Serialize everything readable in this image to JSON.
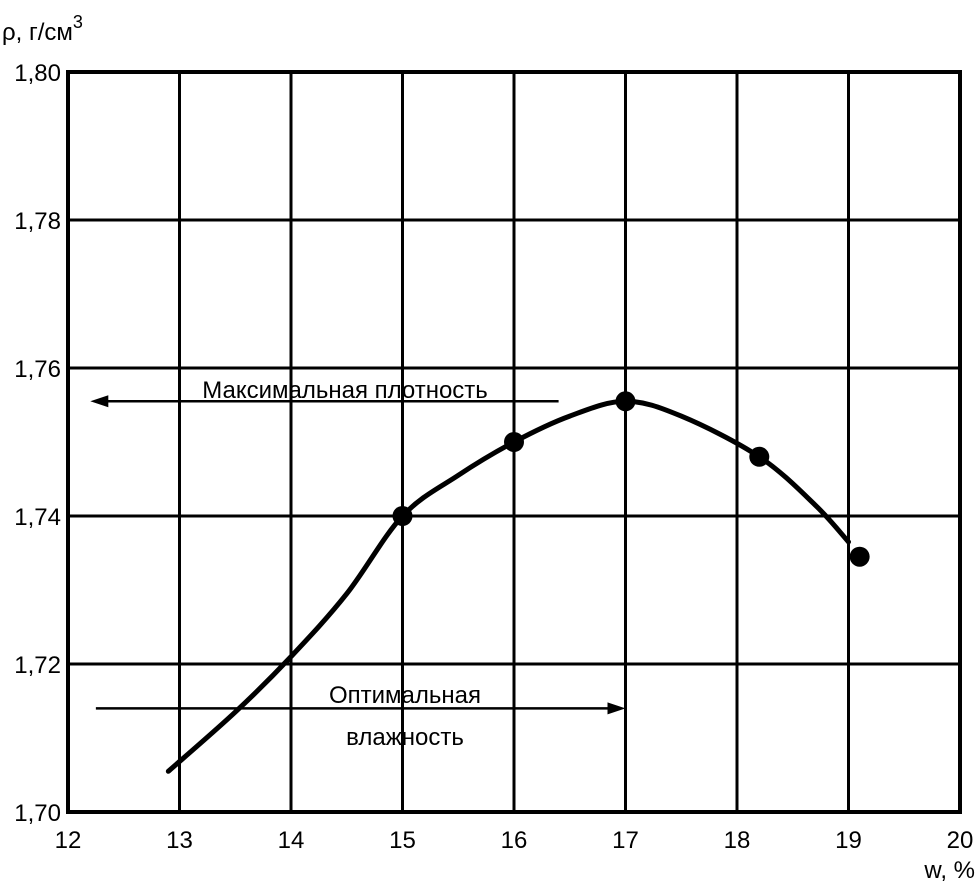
{
  "chart_data": {
    "type": "line",
    "title": "",
    "xlabel": "w, %",
    "ylabel": "ρ, г/см",
    "ylabel_sup": "3",
    "xlim": [
      12,
      20
    ],
    "ylim": [
      1.7,
      1.8
    ],
    "grid": true,
    "x_ticks": [
      12,
      13,
      14,
      15,
      16,
      17,
      18,
      19,
      20
    ],
    "x_tick_labels": [
      "12",
      "13",
      "14",
      "15",
      "16",
      "17",
      "18",
      "19",
      "20"
    ],
    "y_ticks": [
      1.7,
      1.72,
      1.74,
      1.76,
      1.78,
      1.8
    ],
    "y_tick_labels": [
      "1,70",
      "1,72",
      "1,74",
      "1,76",
      "1,78",
      "1,80"
    ],
    "points": {
      "x": [
        15,
        16,
        17,
        18.2,
        19.1
      ],
      "y": [
        1.74,
        1.75,
        1.7555,
        1.748,
        1.7345
      ]
    },
    "curve": {
      "x": [
        12.9,
        13.5,
        14.0,
        14.5,
        15.0,
        15.5,
        16.0,
        16.5,
        17.0,
        17.5,
        18.2,
        18.7,
        19.0
      ],
      "y": [
        1.7055,
        1.7135,
        1.721,
        1.7295,
        1.74,
        1.7455,
        1.75,
        1.7535,
        1.7555,
        1.7535,
        1.748,
        1.7415,
        1.7365
      ]
    },
    "annotations": [
      {
        "text": "Максимальная плотность",
        "arrow_from": [
          16.4,
          1.7555
        ],
        "arrow_to": [
          12.2,
          1.7555
        ],
        "direction": "left"
      },
      {
        "text_lines": [
          "Оптимальная",
          "влажность"
        ],
        "arrow_from": [
          12.25,
          1.714
        ],
        "arrow_to": [
          17.0,
          1.714
        ],
        "direction": "right"
      }
    ]
  }
}
